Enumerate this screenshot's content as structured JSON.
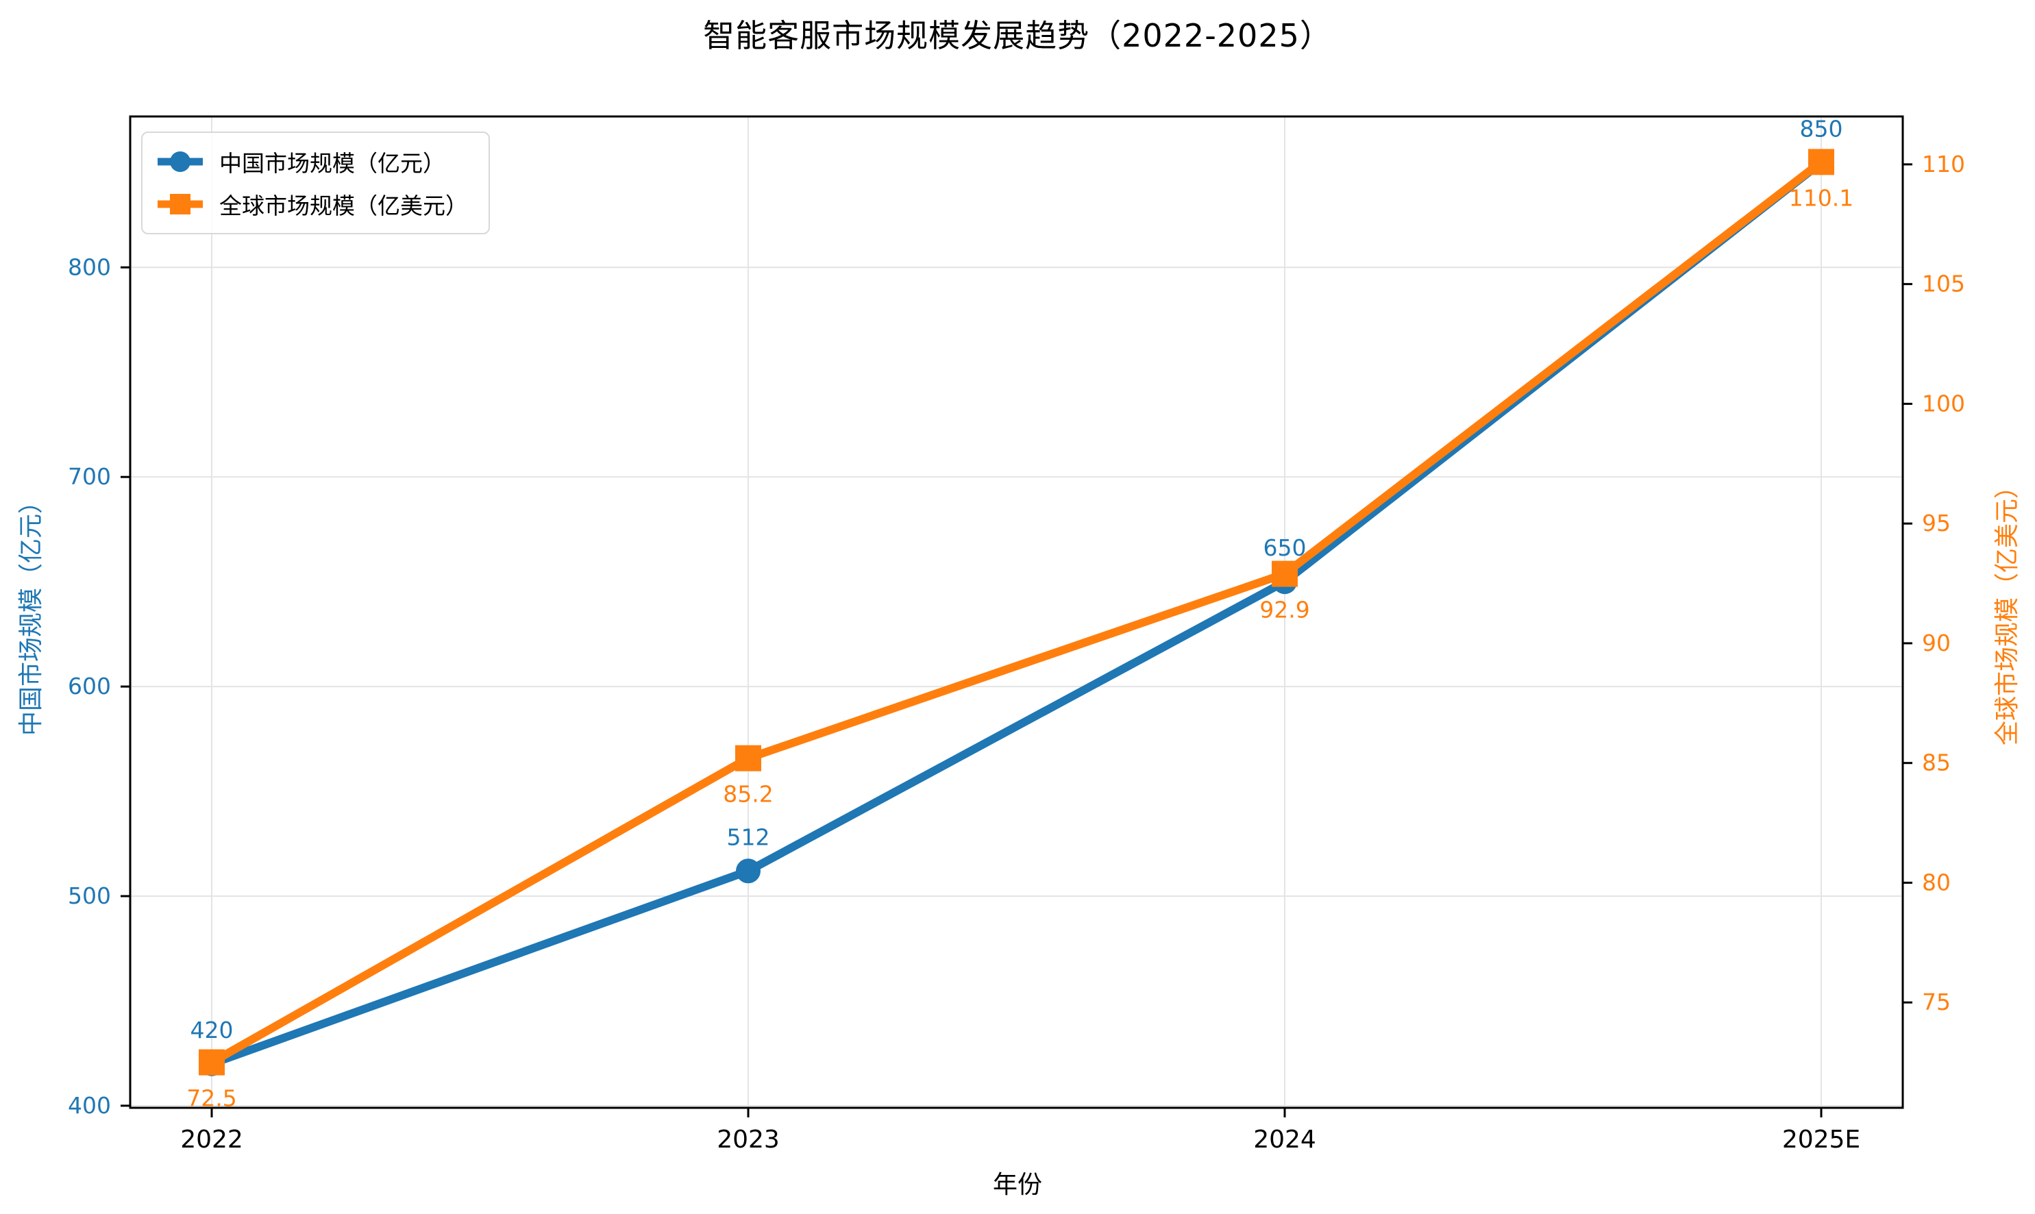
{
  "title": "智能客服市场规模发展趋势（2022-2025）",
  "chart_data": {
    "type": "line",
    "categories": [
      "2022",
      "2023",
      "2024",
      "2025E"
    ],
    "xlabel": "年份",
    "series": [
      {
        "name": "中国市场规模（亿元）",
        "axis": "left",
        "color": "#1f77b4",
        "marker": "circle",
        "label_position": "above",
        "values": [
          420,
          512,
          650,
          850
        ],
        "point_labels": [
          "420",
          "512",
          "650",
          "850"
        ]
      },
      {
        "name": "全球市场规模（亿美元）",
        "axis": "right",
        "color": "#ff7f0e",
        "marker": "square",
        "label_position": "below",
        "values": [
          72.5,
          85.2,
          92.9,
          110.1
        ],
        "point_labels": [
          "72.5",
          "85.2",
          "92.9",
          "110.1"
        ]
      }
    ],
    "left_axis": {
      "label": "中国市场规模（亿元）",
      "ticks": [
        400,
        500,
        600,
        700,
        800
      ],
      "range": [
        399,
        872
      ],
      "color": "#1f77b4"
    },
    "right_axis": {
      "label": "全球市场规模（亿美元）",
      "ticks": [
        75,
        80,
        85,
        90,
        95,
        100,
        105,
        110
      ],
      "range": [
        70.6,
        112
      ],
      "color": "#ff7f0e"
    },
    "grid": true,
    "legend_position": "upper-left"
  },
  "colors": {
    "background": "#ffffff",
    "grid": "#e4e4e4",
    "spine": "#000000",
    "tick_text": "#000000"
  }
}
